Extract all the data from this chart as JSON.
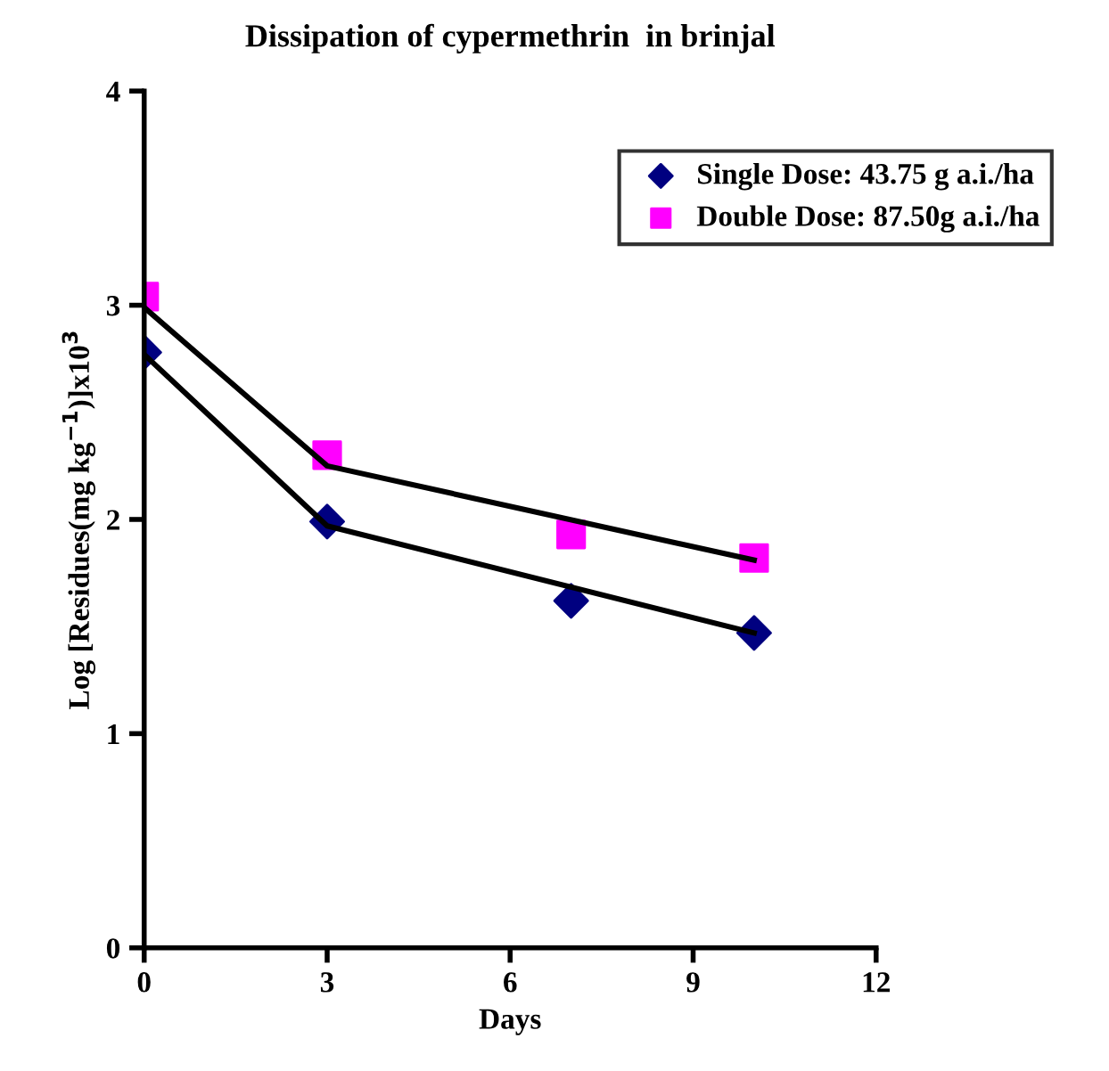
{
  "chart_data": {
    "type": "scatter",
    "title": "Dissipation of cypermethrin  in brinjal",
    "xlabel": "Days",
    "ylabel": "Log [Residues(mg kg$^{−1}$)]x10$^{3}$",
    "series": [
      {
        "name": "Single Dose: 43.75 g a.i./ha",
        "color": "#000080",
        "marker": "diamond",
        "x": [
          0,
          3,
          7,
          10
        ],
        "values": [
          2.78,
          1.99,
          1.62,
          1.47
        ]
      },
      {
        "name": "Double Dose: 87.50g a.i./ha",
        "color": "#ff00ff",
        "marker": "square",
        "x": [
          0,
          3,
          7,
          10
        ],
        "values": [
          3.04,
          2.3,
          1.93,
          1.82
        ]
      },
      {
        "color": "#000000",
        "type": "line",
        "marker": "none",
        "line_style": "solid",
        "x": [
          0,
          3,
          10
        ],
        "values": [
          2.77,
          1.97,
          1.47
        ]
      },
      {
        "color": "#000000",
        "type": "line",
        "marker": "none",
        "line_style": "solid",
        "x": [
          0,
          3,
          10
        ],
        "values": [
          2.99,
          2.25,
          1.81
        ]
      }
    ],
    "xlim": [
      0,
      12
    ],
    "xticks": [
      0,
      3,
      6,
      9,
      12
    ],
    "ylim": [
      0,
      4
    ],
    "yticks": [
      0,
      1,
      2,
      3,
      4
    ],
    "grid": false,
    "legend": "top right"
  }
}
